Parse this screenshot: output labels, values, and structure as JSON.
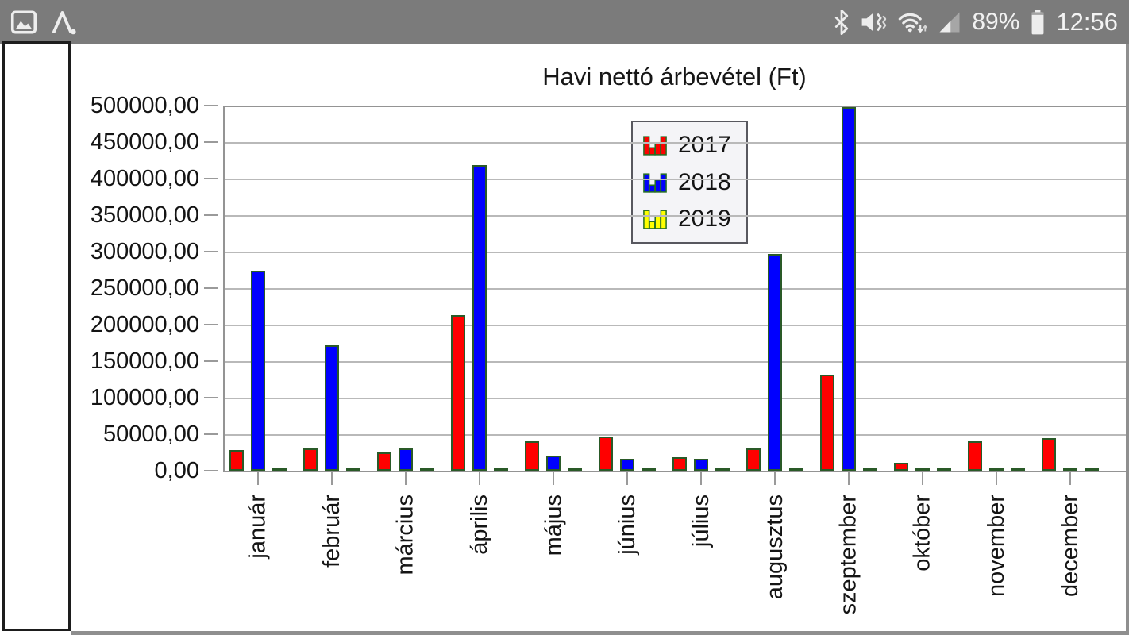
{
  "status_bar": {
    "bg_color": "#7b7b7b",
    "left_icons": [
      {
        "name": "gallery-icon"
      },
      {
        "name": "letter-a-notification-icon"
      }
    ],
    "right_icons": [
      {
        "name": "bluetooth-icon"
      },
      {
        "name": "mute-vibrate-icon"
      },
      {
        "name": "wifi-arrows-icon"
      },
      {
        "name": "cellular-signal-icon"
      },
      {
        "name": "battery-icon"
      }
    ],
    "battery_percent": "89%",
    "time": "12:56"
  },
  "chart_data": {
    "type": "bar",
    "title": "Havi nettó árbevétel (Ft)",
    "value_unit": "Ft",
    "categories": [
      "január",
      "február",
      "március",
      "április",
      "május",
      "június",
      "július",
      "augusztus",
      "szeptember",
      "október",
      "november",
      "december"
    ],
    "series": [
      {
        "name": "2017",
        "color": "#ff0000",
        "values": [
          28000,
          30000,
          25000,
          213000,
          40000,
          47000,
          18500,
          30000,
          131000,
          11000,
          40000,
          44500
        ]
      },
      {
        "name": "2018",
        "color": "#0000ff",
        "values": [
          274000,
          172000,
          30000,
          418000,
          21000,
          16000,
          16000,
          297000,
          498000,
          2500,
          2500,
          2500
        ]
      },
      {
        "name": "2019",
        "color": "#ffff00",
        "values": [
          2500,
          2500,
          2500,
          2500,
          2500,
          2500,
          2500,
          2500,
          2500,
          2500,
          2500,
          2500
        ]
      }
    ],
    "ylim": [
      0,
      500000
    ],
    "ytick_step": 50000,
    "ytick_labels": [
      "500000,00",
      "450000,00",
      "400000,00",
      "350000,00",
      "300000,00",
      "250000,00",
      "200000,00",
      "150000,00",
      "100000,00",
      "50000,00",
      "0,00"
    ],
    "grid": true,
    "legend_position": "top-center",
    "bar_border_color": "#2a5a28",
    "gridline_color": "#b9b9b9",
    "axis_color": "#949494"
  }
}
